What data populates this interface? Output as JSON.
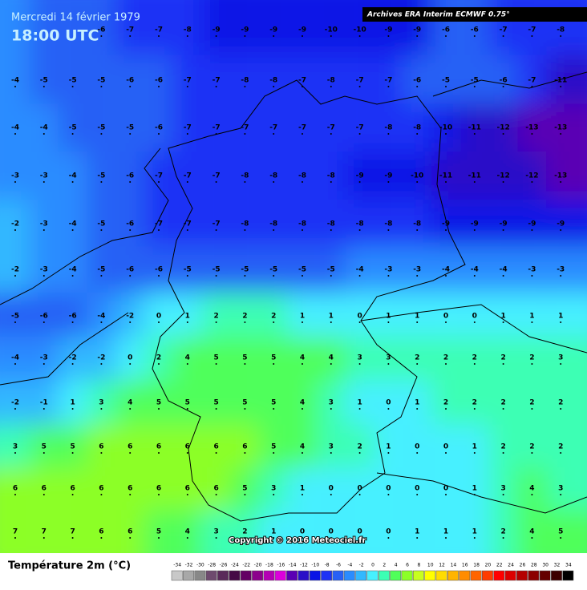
{
  "header": {
    "date": "Mercredi 14 février 1979",
    "time": "18:00 UTC",
    "source": "Archives ERA Interim ECMWF 0.75°"
  },
  "copyright": "Copyright © 2016 Meteociel.fr",
  "legend": {
    "title": "Température 2m (°C)",
    "labels": [
      -34,
      -32,
      -30,
      -28,
      -26,
      -24,
      -22,
      -20,
      -18,
      -16,
      -14,
      -12,
      -10,
      -8,
      -6,
      -4,
      -2,
      0,
      2,
      4,
      6,
      8,
      10,
      12,
      14,
      16,
      18,
      20,
      22,
      24,
      26,
      28,
      30,
      32,
      34
    ],
    "colors": [
      "#c8c8c8",
      "#a8a8a8",
      "#888888",
      "#6e4a6e",
      "#5a2a5a",
      "#460a46",
      "#640064",
      "#8c008c",
      "#b400b4",
      "#dc00dc",
      "#5a00b4",
      "#2a10c8",
      "#0a14e6",
      "#1e32f5",
      "#2860f5",
      "#2a8cff",
      "#32b8ff",
      "#46f0ff",
      "#3cffb4",
      "#50ff5a",
      "#8cff28",
      "#c8ff1e",
      "#ffff00",
      "#ffdc00",
      "#ffb400",
      "#ff8c00",
      "#ff6400",
      "#ff3c00",
      "#ff0000",
      "#dc0000",
      "#b40000",
      "#8c0000",
      "#640000",
      "#3c0000",
      "#000000"
    ]
  },
  "grid": {
    "rows": [
      [
        null,
        null,
        null,
        -6,
        -7,
        -7,
        -8,
        -9,
        -9,
        -9,
        -9,
        -10,
        -10,
        -9,
        -9,
        -6,
        -6,
        -7,
        -7,
        -8
      ],
      [
        -4,
        -5,
        -5,
        -5,
        -6,
        -6,
        -7,
        -7,
        -8,
        -8,
        -7,
        -8,
        -7,
        -7,
        -6,
        -5,
        -5,
        -6,
        -7,
        -11
      ],
      [
        -4,
        -4,
        -5,
        -5,
        -5,
        -6,
        -7,
        -7,
        -7,
        -7,
        -7,
        -7,
        -7,
        -8,
        -8,
        -10,
        -11,
        -12,
        -13,
        -13
      ],
      [
        -3,
        -3,
        -4,
        -5,
        -6,
        -7,
        -7,
        -7,
        -8,
        -8,
        -8,
        -8,
        -9,
        -9,
        -10,
        -11,
        -11,
        -12,
        -12,
        -13
      ],
      [
        -2,
        -3,
        -4,
        -5,
        -6,
        -7,
        -7,
        -7,
        -8,
        -8,
        -8,
        -8,
        -8,
        -8,
        -8,
        -9,
        -9,
        -9,
        -9,
        -9
      ],
      [
        -2,
        -3,
        -4,
        -5,
        -6,
        -6,
        -5,
        -5,
        -5,
        -5,
        -5,
        -5,
        -4,
        -3,
        -3,
        -4,
        -4,
        -4,
        -3,
        -3
      ],
      [
        -5,
        -6,
        -6,
        -4,
        -2,
        0,
        1,
        2,
        2,
        2,
        1,
        1,
        0,
        1,
        1,
        0,
        0,
        1,
        1,
        1
      ],
      [
        -4,
        -3,
        -2,
        -2,
        0,
        2,
        4,
        5,
        5,
        5,
        4,
        4,
        3,
        3,
        2,
        2,
        2,
        2,
        2,
        3
      ],
      [
        -2,
        -1,
        1,
        3,
        4,
        5,
        5,
        5,
        5,
        5,
        4,
        3,
        1,
        0,
        1,
        2,
        2,
        2,
        2,
        2
      ],
      [
        3,
        5,
        5,
        6,
        6,
        6,
        6,
        6,
        6,
        5,
        4,
        3,
        2,
        1,
        0,
        0,
        1,
        2,
        2,
        2
      ],
      [
        6,
        6,
        6,
        6,
        6,
        6,
        6,
        6,
        5,
        3,
        1,
        0,
        0,
        0,
        0,
        0,
        1,
        3,
        4,
        3
      ],
      [
        7,
        7,
        7,
        6,
        6,
        5,
        4,
        3,
        2,
        1,
        0,
        0,
        0,
        0,
        1,
        1,
        1,
        2,
        4,
        5
      ]
    ]
  }
}
